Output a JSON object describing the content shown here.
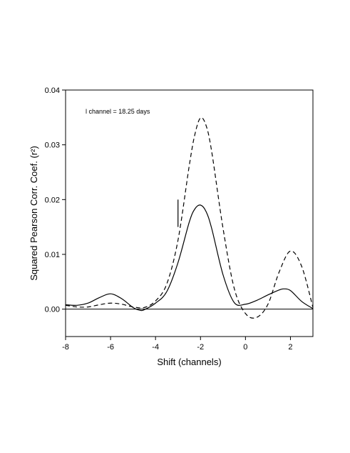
{
  "chart_data": {
    "type": "line",
    "title": "",
    "xlabel": "Shift (channels)",
    "ylabel": "Squared Pearson Corr. Coef. (r²)",
    "xlim": [
      -8,
      3
    ],
    "ylim": [
      -0.005,
      0.04
    ],
    "xticks": [
      -8,
      -6,
      -4,
      -2,
      0,
      2
    ],
    "xtick_labels": [
      "-8",
      "-6",
      "-4",
      "-2",
      "0",
      "2"
    ],
    "yticks": [
      0.0,
      0.01,
      0.02,
      0.03,
      0.04
    ],
    "ytick_labels": [
      "0.00",
      "0.01",
      "0.02",
      "0.03",
      "0.04"
    ],
    "annotation": "l channel = 18.25 days",
    "grid": false,
    "legend": "none",
    "marker_bar": {
      "x": -3.0,
      "y_from": 0.015,
      "y_to": 0.02
    },
    "reference_line": {
      "y": 0.0
    },
    "series": [
      {
        "style": "solid",
        "color": "#000000",
        "x": [
          -8.0,
          -7.5,
          -7.0,
          -6.5,
          -6.0,
          -5.5,
          -5.0,
          -4.7,
          -4.5,
          -4.0,
          -3.5,
          -3.0,
          -2.5,
          -2.25,
          -2.0,
          -1.75,
          -1.5,
          -1.0,
          -0.5,
          0.0,
          0.5,
          1.0,
          1.5,
          1.7,
          2.0,
          2.5,
          3.0
        ],
        "y": [
          0.0008,
          0.0007,
          0.0011,
          0.0021,
          0.0028,
          0.0019,
          0.0003,
          -0.0002,
          -0.0001,
          0.0011,
          0.0032,
          0.0085,
          0.0159,
          0.0183,
          0.019,
          0.0178,
          0.0147,
          0.0063,
          0.0012,
          0.0009,
          0.0016,
          0.0026,
          0.0035,
          0.0037,
          0.0034,
          0.0014,
          0.0001
        ]
      },
      {
        "style": "dashed",
        "color": "#000000",
        "x": [
          -8.0,
          -7.5,
          -7.0,
          -6.5,
          -6.0,
          -5.5,
          -5.0,
          -4.5,
          -4.0,
          -3.5,
          -3.0,
          -2.5,
          -2.25,
          -2.0,
          -1.75,
          -1.5,
          -1.0,
          -0.5,
          0.0,
          0.5,
          1.0,
          1.5,
          2.0,
          2.5,
          3.0
        ],
        "y": [
          0.0007,
          0.0004,
          0.0004,
          0.0008,
          0.0011,
          0.0009,
          0.0004,
          0.0003,
          0.0015,
          0.0046,
          0.0126,
          0.0262,
          0.0319,
          0.0349,
          0.0335,
          0.0287,
          0.0148,
          0.0038,
          -0.0008,
          -0.0015,
          0.0009,
          0.0068,
          0.0106,
          0.0078,
          0.0003
        ]
      }
    ]
  }
}
